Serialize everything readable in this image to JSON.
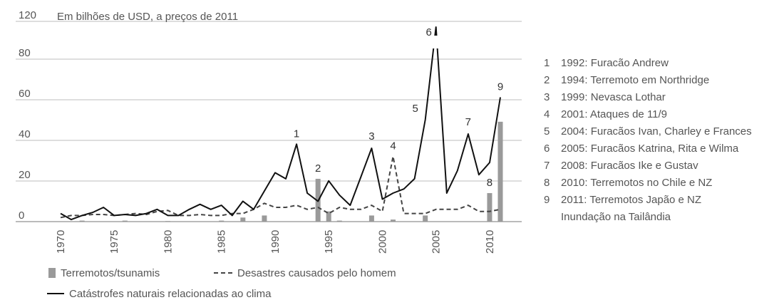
{
  "chart_data": {
    "type": "bar+line",
    "unit_label": "Em bilhões de USD, a preços de 2011",
    "y_ticks": [
      0,
      20,
      40,
      60,
      80,
      120
    ],
    "x_ticks": [
      1970,
      1975,
      1980,
      1985,
      1990,
      1995,
      2000,
      2005,
      2010
    ],
    "x": [
      1970,
      1971,
      1972,
      1973,
      1974,
      1975,
      1976,
      1977,
      1978,
      1979,
      1980,
      1981,
      1982,
      1983,
      1984,
      1985,
      1986,
      1987,
      1988,
      1989,
      1990,
      1991,
      1992,
      1993,
      1994,
      1995,
      1996,
      1997,
      1998,
      1999,
      2000,
      2001,
      2002,
      2003,
      2004,
      2005,
      2006,
      2007,
      2008,
      2009,
      2010,
      2011
    ],
    "series": [
      {
        "name": "Terremotos/tsunamis",
        "type": "bar",
        "color": "#9a9a9a",
        "values": [
          0,
          0,
          0.5,
          0,
          0,
          0,
          0.5,
          0,
          0,
          0,
          0.3,
          0,
          0,
          0,
          0,
          0.5,
          0,
          2,
          0,
          3,
          0,
          0,
          0,
          0,
          21,
          5,
          0.5,
          0,
          0,
          3,
          0,
          1,
          0,
          0,
          3,
          0,
          0,
          0,
          0,
          0,
          14,
          49
        ]
      },
      {
        "name": "Desastres causados pelo homem",
        "type": "line",
        "dash": true,
        "color": "#444444",
        "values": [
          2,
          3,
          3,
          3.5,
          3.5,
          3,
          3.5,
          4,
          3.5,
          5,
          5.5,
          3,
          3,
          3.5,
          3,
          3,
          4,
          4,
          6,
          9,
          7,
          7,
          8,
          6,
          7,
          4,
          7,
          6,
          6,
          8,
          5,
          32,
          4,
          4,
          4,
          6,
          6,
          6,
          8,
          5,
          5,
          6
        ]
      },
      {
        "name": "Catástrofes naturais relacionadas ao clima",
        "type": "line",
        "dash": false,
        "color": "#111111",
        "values": [
          4,
          1,
          3,
          4.5,
          7,
          3,
          3.5,
          3,
          4,
          6,
          3,
          3,
          6,
          8.5,
          6,
          8,
          3,
          10,
          6,
          15,
          24,
          21,
          38,
          14,
          10,
          20,
          13,
          8,
          22,
          36,
          11,
          14,
          16,
          21,
          50,
          108,
          14,
          25,
          43,
          23,
          29,
          61
        ]
      }
    ],
    "annotations": [
      {
        "label": "1",
        "year": 1992,
        "value": 38
      },
      {
        "label": "2",
        "year": 1994,
        "value": 21
      },
      {
        "label": "3",
        "year": 1999,
        "value": 36
      },
      {
        "label": "4",
        "year": 2001,
        "value": 32
      },
      {
        "label": "5",
        "year": 2004,
        "value": 50
      },
      {
        "label": "6",
        "year": 2005,
        "value": 108
      },
      {
        "label": "7",
        "year": 2008,
        "value": 43
      },
      {
        "label": "8",
        "year": 2010,
        "value": 14
      },
      {
        "label": "9",
        "year": 2011,
        "value": 61
      }
    ],
    "events": [
      {
        "num": "1",
        "text": [
          "1992: Furacão Andrew"
        ]
      },
      {
        "num": "2",
        "text": [
          "1994: Terremoto em Northridge"
        ]
      },
      {
        "num": "3",
        "text": [
          "1999: Nevasca Lothar"
        ]
      },
      {
        "num": "4",
        "text": [
          "2001: Ataques de 11/9"
        ]
      },
      {
        "num": "5",
        "text": [
          "2004: Furacãos Ivan, Charley e Frances"
        ]
      },
      {
        "num": "6",
        "text": [
          "2005: Furacãos Katrina, Rita e Wilma"
        ]
      },
      {
        "num": "7",
        "text": [
          "2008: Furacãos Ike e Gustav"
        ]
      },
      {
        "num": "8",
        "text": [
          "2010: Terremotos no Chile e NZ"
        ]
      },
      {
        "num": "9",
        "text": [
          "2011: Terremotos Japão e NZ",
          "Inundação na Tailândia"
        ]
      }
    ],
    "legend": [
      {
        "key": "bar",
        "label": "Terremotos/tsunamis"
      },
      {
        "key": "dashed",
        "label": "Desastres causados pelo homem"
      },
      {
        "key": "solid",
        "label": "Catástrofes naturais relacionadas ao clima"
      }
    ]
  }
}
